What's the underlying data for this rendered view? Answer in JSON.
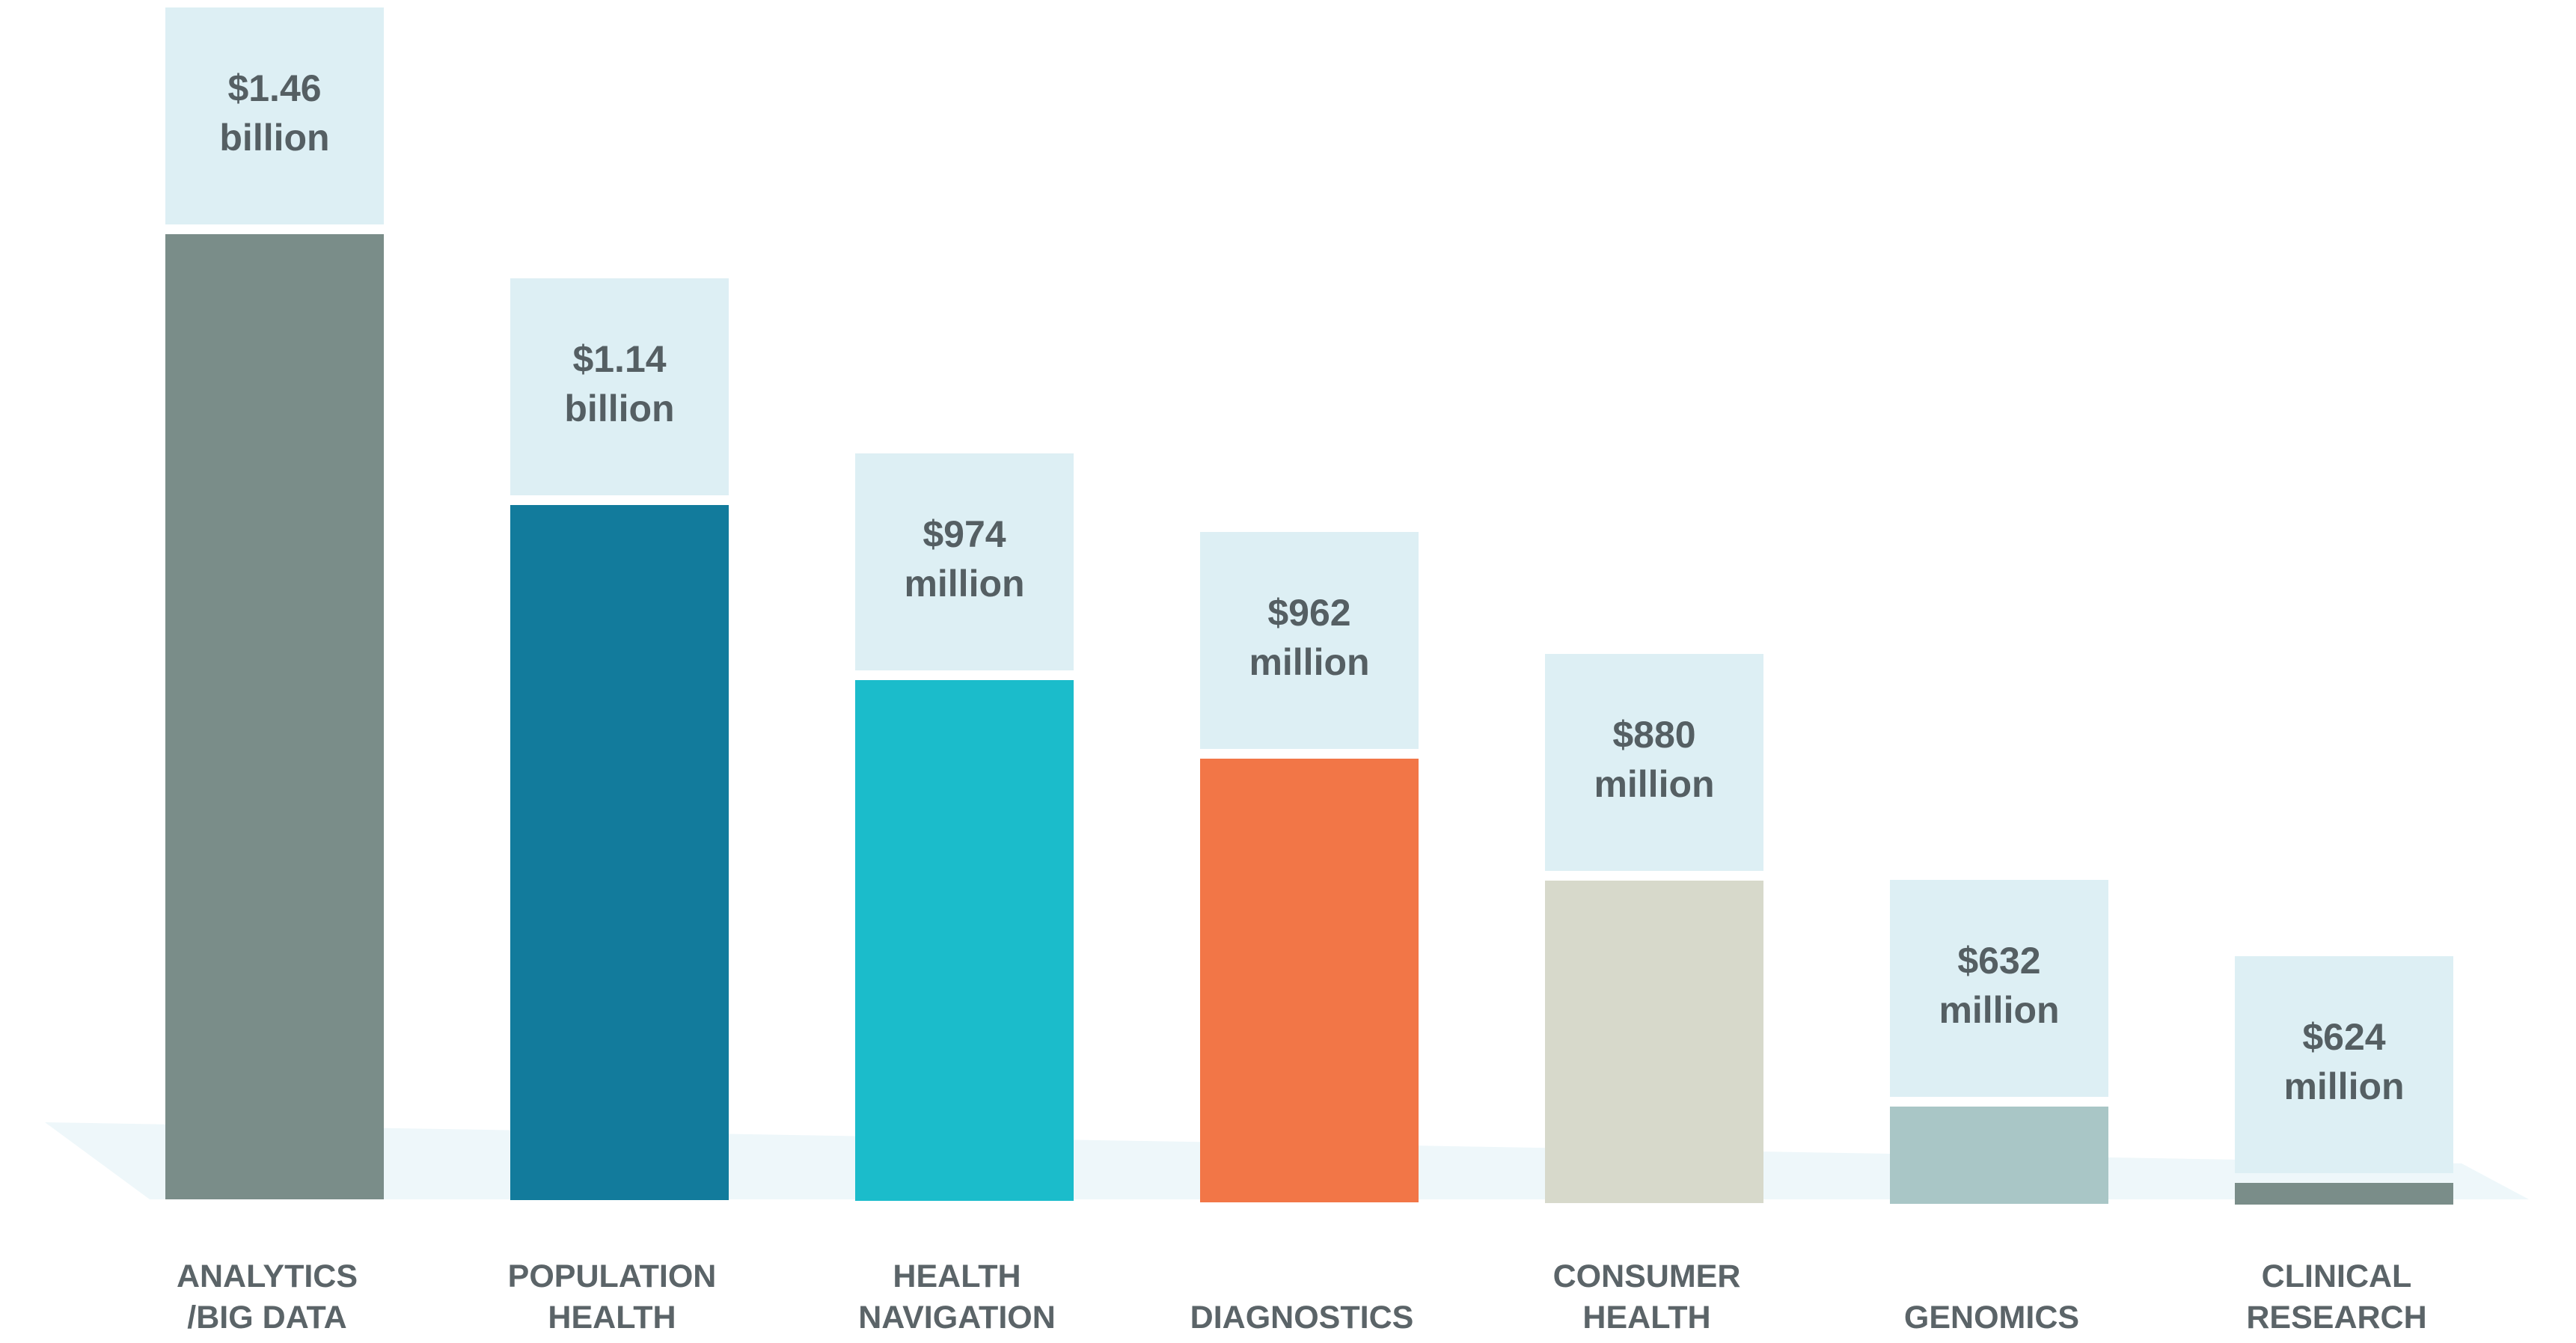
{
  "chart_data": {
    "type": "bar",
    "title": "",
    "xlabel": "",
    "ylabel": "",
    "categories": [
      [
        "ANALYTICS",
        "/BIG DATA"
      ],
      [
        "POPULATION",
        "HEALTH"
      ],
      [
        "HEALTH",
        "NAVIGATION"
      ],
      [
        "DIAGNOSTICS"
      ],
      [
        "CONSUMER",
        "HEALTH"
      ],
      [
        "GENOMICS"
      ],
      [
        "CLINICAL",
        "RESEARCH"
      ]
    ],
    "values": [
      1460,
      1140,
      974,
      962,
      880,
      632,
      624
    ],
    "value_unit": "USD millions",
    "value_labels": [
      [
        "$1.46",
        "billion"
      ],
      [
        "$1.14",
        "billion"
      ],
      [
        "$974",
        "million"
      ],
      [
        "$962",
        "million"
      ],
      [
        "$880",
        "million"
      ],
      [
        "$632",
        "million"
      ],
      [
        "$624",
        "million"
      ]
    ],
    "colors": [
      "#7a8d89",
      "#127b9c",
      "#1bbccb",
      "#f27647",
      "#d7d9cb",
      "#a9c6c6",
      "#7a8d89"
    ],
    "label_box_color": "#ddeff4",
    "floor_color": "#eef7fa",
    "grid": false,
    "legend": "none"
  }
}
